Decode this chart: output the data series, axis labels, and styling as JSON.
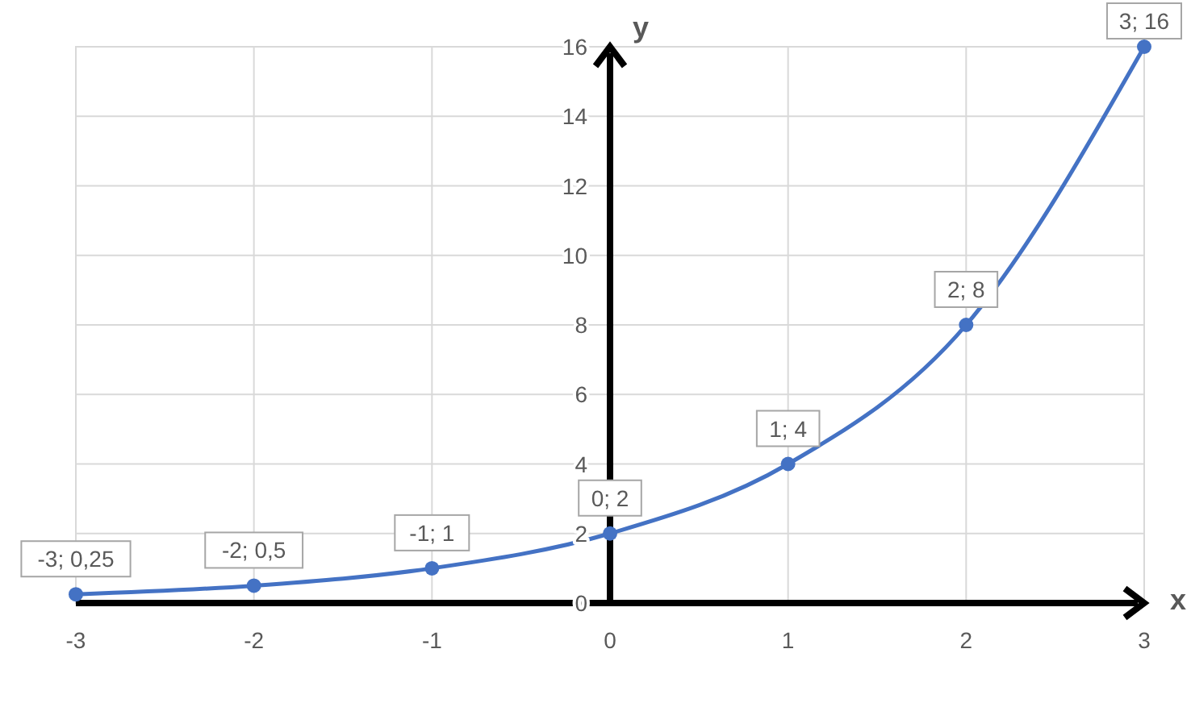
{
  "chart_data": {
    "type": "line",
    "xlabel": "x",
    "ylabel": "y",
    "x": [
      -3,
      -2,
      -1,
      0,
      1,
      2,
      3
    ],
    "series": [
      {
        "color": "#4472c4",
        "values": [
          0.25,
          0.5,
          1,
          2,
          4,
          8,
          16
        ],
        "value_labels": [
          "-3; 0,25",
          "-2; 0,5",
          "-1; 1",
          "0; 2",
          "1; 4",
          "2; 8",
          "3; 16"
        ]
      }
    ],
    "xlim": [
      -3,
      3
    ],
    "xticks": [
      -3,
      -2,
      -1,
      0,
      1,
      2,
      3
    ],
    "ylim": [
      0,
      16
    ],
    "yticks": [
      0,
      2,
      4,
      6,
      8,
      10,
      12,
      14,
      16
    ],
    "grid": true,
    "marker": "circle",
    "line_style": "solid"
  }
}
